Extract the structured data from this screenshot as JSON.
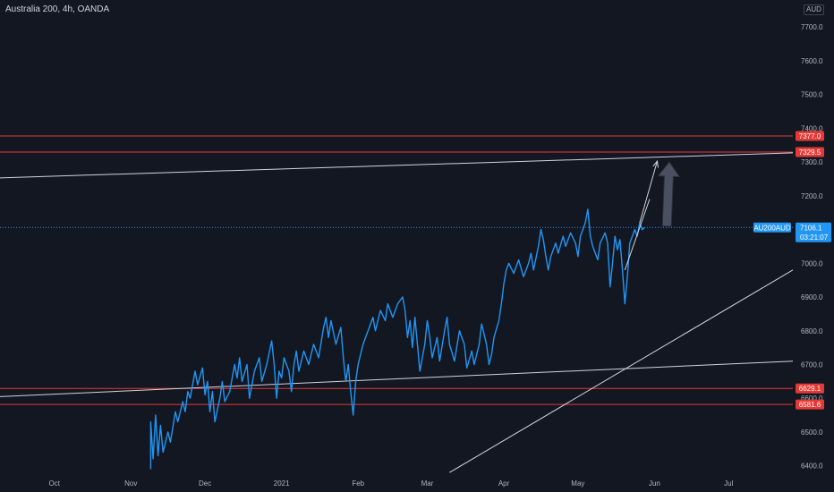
{
  "header": {
    "title": "Australia 200, 4h, OANDA",
    "currency": "AUD"
  },
  "colors": {
    "background": "#131722",
    "price_line": "#2196f3",
    "level_red": "#e53935",
    "trend_white": "#d1d4dc",
    "projection_arrow": "#4a5061",
    "label_text": "#ffffff",
    "axis_text": "#b2b5be"
  },
  "price_tag": {
    "symbol": "AU200AUD",
    "price": "7106.1",
    "countdown": "03:21:07"
  },
  "chart_data": {
    "type": "line",
    "symbol": "AU200AUD",
    "timeframe": "4h",
    "x_ticks": [
      {
        "label": "Oct",
        "date": "2020-10-01"
      },
      {
        "label": "Nov",
        "date": "2020-11-01"
      },
      {
        "label": "Dec",
        "date": "2020-12-01"
      },
      {
        "label": "2021",
        "date": "2021-01-01"
      },
      {
        "label": "Feb",
        "date": "2021-02-01"
      },
      {
        "label": "Mar",
        "date": "2021-03-01"
      },
      {
        "label": "Apr",
        "date": "2021-04-01"
      },
      {
        "label": "May",
        "date": "2021-05-01"
      },
      {
        "label": "Jun",
        "date": "2021-06-01"
      },
      {
        "label": "Jul",
        "date": "2021-07-01"
      }
    ],
    "y_ticks": [
      6400,
      6500,
      6600,
      6700,
      6800,
      6900,
      7000,
      7100,
      7200,
      7300,
      7400,
      7500,
      7600,
      7700
    ],
    "xlim": [
      "2020-09-09",
      "2021-07-27"
    ],
    "ylim": [
      6370,
      7780
    ],
    "series": [
      {
        "points": [
          [
            "2020-11-09",
            6390
          ],
          [
            "2020-11-09",
            6530
          ],
          [
            "2020-11-10",
            6420
          ],
          [
            "2020-11-11",
            6550
          ],
          [
            "2020-11-12",
            6430
          ],
          [
            "2020-11-13",
            6520
          ],
          [
            "2020-11-14",
            6440
          ],
          [
            "2020-11-16",
            6500
          ],
          [
            "2020-11-17",
            6470
          ],
          [
            "2020-11-19",
            6560
          ],
          [
            "2020-11-20",
            6530
          ],
          [
            "2020-11-22",
            6590
          ],
          [
            "2020-11-23",
            6560
          ],
          [
            "2020-11-24",
            6620
          ],
          [
            "2020-11-25",
            6600
          ],
          [
            "2020-11-27",
            6680
          ],
          [
            "2020-11-28",
            6640
          ],
          [
            "2020-11-30",
            6690
          ],
          [
            "2020-12-01",
            6610
          ],
          [
            "2020-12-02",
            6650
          ],
          [
            "2020-12-03",
            6560
          ],
          [
            "2020-12-04",
            6620
          ],
          [
            "2020-12-05",
            6530
          ],
          [
            "2020-12-07",
            6600
          ],
          [
            "2020-12-08",
            6650
          ],
          [
            "2020-12-09",
            6590
          ],
          [
            "2020-12-11",
            6620
          ],
          [
            "2020-12-13",
            6700
          ],
          [
            "2020-12-14",
            6660
          ],
          [
            "2020-12-15",
            6720
          ],
          [
            "2020-12-16",
            6650
          ],
          [
            "2020-12-18",
            6700
          ],
          [
            "2020-12-19",
            6600
          ],
          [
            "2020-12-21",
            6680
          ],
          [
            "2020-12-23",
            6720
          ],
          [
            "2020-12-24",
            6650
          ],
          [
            "2020-12-26",
            6700
          ],
          [
            "2020-12-28",
            6770
          ],
          [
            "2020-12-29",
            6700
          ],
          [
            "2020-12-30",
            6600
          ],
          [
            "2020-12-31",
            6680
          ],
          [
            "2021-01-01",
            6660
          ],
          [
            "2021-01-02",
            6720
          ],
          [
            "2021-01-04",
            6680
          ],
          [
            "2021-01-05",
            6620
          ],
          [
            "2021-01-06",
            6700
          ],
          [
            "2021-01-07",
            6740
          ],
          [
            "2021-01-08",
            6680
          ],
          [
            "2021-01-10",
            6740
          ],
          [
            "2021-01-12",
            6700
          ],
          [
            "2021-01-14",
            6760
          ],
          [
            "2021-01-16",
            6720
          ],
          [
            "2021-01-18",
            6810
          ],
          [
            "2021-01-19",
            6840
          ],
          [
            "2021-01-20",
            6780
          ],
          [
            "2021-01-21",
            6830
          ],
          [
            "2021-01-23",
            6760
          ],
          [
            "2021-01-25",
            6810
          ],
          [
            "2021-01-26",
            6720
          ],
          [
            "2021-01-27",
            6650
          ],
          [
            "2021-01-28",
            6700
          ],
          [
            "2021-01-29",
            6620
          ],
          [
            "2021-01-30",
            6550
          ],
          [
            "2021-01-31",
            6650
          ],
          [
            "2021-02-01",
            6700
          ],
          [
            "2021-02-03",
            6760
          ],
          [
            "2021-02-05",
            6800
          ],
          [
            "2021-02-07",
            6840
          ],
          [
            "2021-02-08",
            6800
          ],
          [
            "2021-02-10",
            6860
          ],
          [
            "2021-02-12",
            6830
          ],
          [
            "2021-02-13",
            6880
          ],
          [
            "2021-02-15",
            6840
          ],
          [
            "2021-02-17",
            6880
          ],
          [
            "2021-02-19",
            6900
          ],
          [
            "2021-02-20",
            6860
          ],
          [
            "2021-02-21",
            6780
          ],
          [
            "2021-02-22",
            6830
          ],
          [
            "2021-02-23",
            6750
          ],
          [
            "2021-02-24",
            6840
          ],
          [
            "2021-02-25",
            6760
          ],
          [
            "2021-02-26",
            6680
          ],
          [
            "2021-02-28",
            6760
          ],
          [
            "2021-03-01",
            6830
          ],
          [
            "2021-03-02",
            6780
          ],
          [
            "2021-03-03",
            6720
          ],
          [
            "2021-03-05",
            6780
          ],
          [
            "2021-03-06",
            6710
          ],
          [
            "2021-03-08",
            6800
          ],
          [
            "2021-03-09",
            6840
          ],
          [
            "2021-03-10",
            6760
          ],
          [
            "2021-03-12",
            6710
          ],
          [
            "2021-03-14",
            6800
          ],
          [
            "2021-03-16",
            6760
          ],
          [
            "2021-03-17",
            6690
          ],
          [
            "2021-03-19",
            6740
          ],
          [
            "2021-03-20",
            6700
          ],
          [
            "2021-03-22",
            6760
          ],
          [
            "2021-03-23",
            6820
          ],
          [
            "2021-03-25",
            6760
          ],
          [
            "2021-03-26",
            6700
          ],
          [
            "2021-03-27",
            6730
          ],
          [
            "2021-03-28",
            6780
          ],
          [
            "2021-03-30",
            6830
          ],
          [
            "2021-03-31",
            6880
          ],
          [
            "2021-04-01",
            6940
          ],
          [
            "2021-04-02",
            6980
          ],
          [
            "2021-04-03",
            7000
          ],
          [
            "2021-04-05",
            6970
          ],
          [
            "2021-04-07",
            7010
          ],
          [
            "2021-04-09",
            6960
          ],
          [
            "2021-04-11",
            7000
          ],
          [
            "2021-04-12",
            7030
          ],
          [
            "2021-04-13",
            6980
          ],
          [
            "2021-04-15",
            7050
          ],
          [
            "2021-04-16",
            7100
          ],
          [
            "2021-04-17",
            7070
          ],
          [
            "2021-04-18",
            7020
          ],
          [
            "2021-04-19",
            6980
          ],
          [
            "2021-04-20",
            7020
          ],
          [
            "2021-04-22",
            7060
          ],
          [
            "2021-04-23",
            7030
          ],
          [
            "2021-04-25",
            7080
          ],
          [
            "2021-04-26",
            7050
          ],
          [
            "2021-04-28",
            7090
          ],
          [
            "2021-04-30",
            7060
          ],
          [
            "2021-05-01",
            7020
          ],
          [
            "2021-05-02",
            7080
          ],
          [
            "2021-05-04",
            7120
          ],
          [
            "2021-05-05",
            7160
          ],
          [
            "2021-05-06",
            7080
          ],
          [
            "2021-05-07",
            7050
          ],
          [
            "2021-05-09",
            7010
          ],
          [
            "2021-05-10",
            7060
          ],
          [
            "2021-05-12",
            7090
          ],
          [
            "2021-05-13",
            7060
          ],
          [
            "2021-05-14",
            6930
          ],
          [
            "2021-05-15",
            7000
          ],
          [
            "2021-05-16",
            7080
          ],
          [
            "2021-05-17",
            7040
          ],
          [
            "2021-05-18",
            7070
          ],
          [
            "2021-05-19",
            6980
          ],
          [
            "2021-05-20",
            6880
          ],
          [
            "2021-05-21",
            6960
          ],
          [
            "2021-05-22",
            7060
          ],
          [
            "2021-05-24",
            7100
          ],
          [
            "2021-05-25",
            7080
          ],
          [
            "2021-05-26",
            7120
          ],
          [
            "2021-05-27",
            7100
          ],
          [
            "2021-05-28",
            7106.1
          ]
        ]
      }
    ],
    "horizontal_levels": [
      {
        "label": "7377.0",
        "value": 7377.0
      },
      {
        "label": "7329.5",
        "value": 7329.5
      },
      {
        "label": "6629.1",
        "value": 6629.1
      },
      {
        "label": "6581.6",
        "value": 6581.6
      }
    ],
    "trendlines": [
      {
        "from": [
          "2020-09-09",
          7253
        ],
        "to": [
          "2021-07-27",
          7327
        ]
      },
      {
        "from": [
          "2020-09-09",
          6605
        ],
        "to": [
          "2021-07-27",
          6710
        ]
      },
      {
        "from": [
          "2021-03-10",
          6380
        ],
        "to": [
          "2021-07-27",
          6980
        ]
      }
    ],
    "projection": {
      "lines": [
        {
          "from": [
            "2021-05-20",
            6980
          ],
          "to": [
            "2021-05-30",
            7190
          ]
        },
        {
          "from": [
            "2021-05-26",
            7120
          ],
          "to": [
            "2021-06-02",
            7300
          ]
        }
      ],
      "arrow": {
        "from": [
          "2021-06-06",
          7110
        ],
        "to": [
          "2021-06-07",
          7300
        ]
      }
    }
  }
}
